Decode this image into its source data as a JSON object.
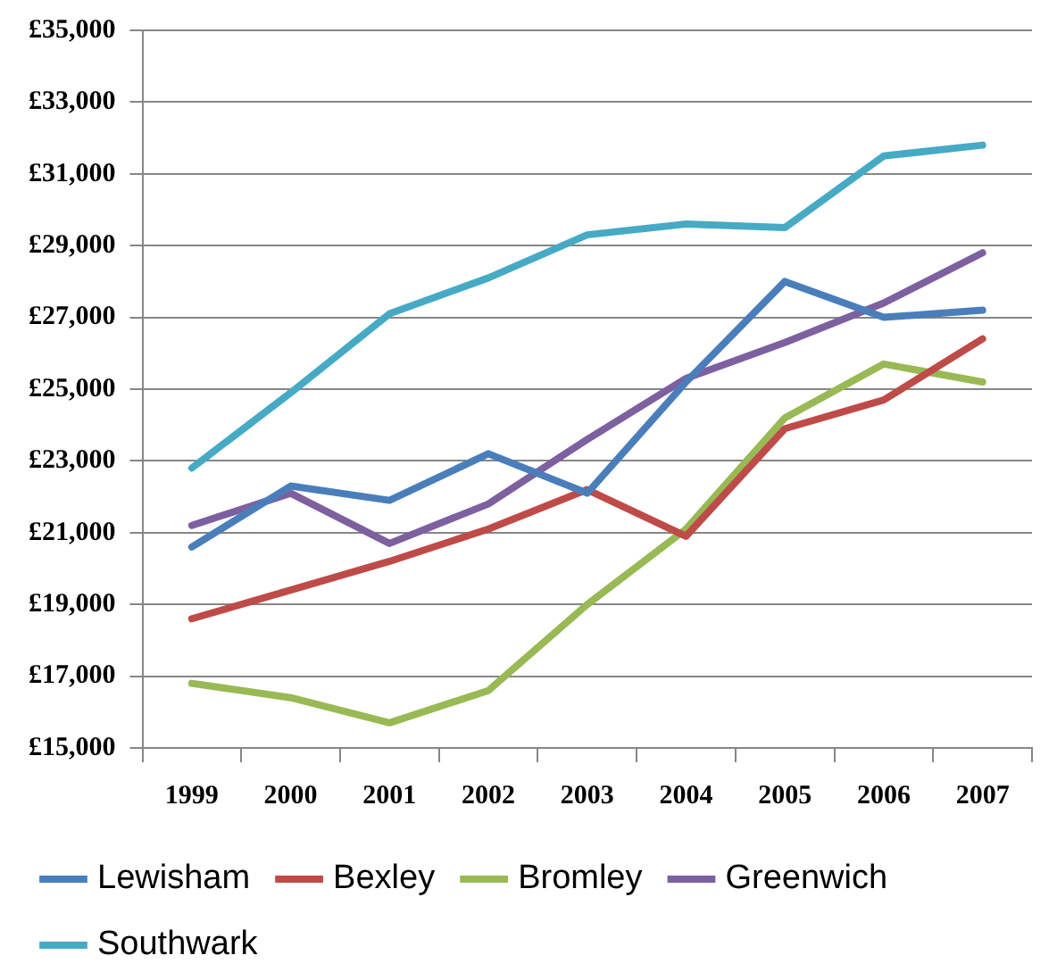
{
  "chart_data": {
    "type": "line",
    "categories": [
      "1999",
      "2000",
      "2001",
      "2002",
      "2003",
      "2004",
      "2005",
      "2006",
      "2007"
    ],
    "series": [
      {
        "name": "Lewisham",
        "color": "#4a7ebb",
        "values": [
          20600,
          22300,
          21900,
          23200,
          22100,
          25200,
          28000,
          27000,
          27200
        ]
      },
      {
        "name": "Bexley",
        "color": "#be4b48",
        "values": [
          18600,
          19400,
          20200,
          21100,
          22200,
          20900,
          23900,
          24700,
          26400
        ]
      },
      {
        "name": "Bromley",
        "color": "#98b954",
        "values": [
          16800,
          16400,
          15700,
          16600,
          19000,
          21100,
          24200,
          25700,
          25200
        ]
      },
      {
        "name": "Greenwich",
        "color": "#7d60a0",
        "values": [
          21200,
          22100,
          20700,
          21800,
          23600,
          25300,
          26300,
          27400,
          28800
        ]
      },
      {
        "name": "Southwark",
        "color": "#46aac5",
        "values": [
          22800,
          24900,
          27100,
          28100,
          29300,
          29600,
          29500,
          31500,
          31800
        ]
      }
    ],
    "ylim": [
      15000,
      35000
    ],
    "yticks": [
      {
        "value": 15000,
        "label": "£15,000"
      },
      {
        "value": 17000,
        "label": "£17,000"
      },
      {
        "value": 19000,
        "label": "£19,000"
      },
      {
        "value": 21000,
        "label": "£21,000"
      },
      {
        "value": 23000,
        "label": "£23,000"
      },
      {
        "value": 25000,
        "label": "£25,000"
      },
      {
        "value": 27000,
        "label": "£27,000"
      },
      {
        "value": 29000,
        "label": "£29,000"
      },
      {
        "value": 31000,
        "label": "£31,000"
      },
      {
        "value": 33000,
        "label": "£33,000"
      },
      {
        "value": 35000,
        "label": "£35,000"
      }
    ],
    "grid": "y",
    "legend": "bottom",
    "marker": "none",
    "line_style": "solid"
  }
}
